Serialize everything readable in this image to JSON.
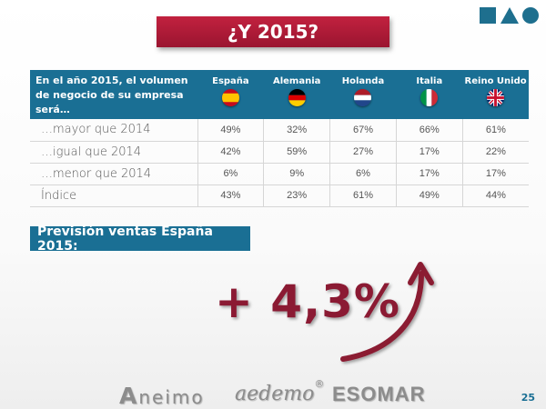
{
  "title": "¿Y 2015?",
  "table": {
    "question": "En el año 2015, el volumen de negocio de su empresa será…",
    "countries": [
      {
        "name": "España",
        "flag": "spain-flag-icon"
      },
      {
        "name": "Alemania",
        "flag": "germany-flag-icon"
      },
      {
        "name": "Holanda",
        "flag": "netherlands-flag-icon"
      },
      {
        "name": "Italia",
        "flag": "italy-flag-icon"
      },
      {
        "name": "Reino Unido",
        "flag": "uk-flag-icon"
      }
    ],
    "rows": [
      {
        "label": "…mayor que 2014",
        "values": [
          "49%",
          "32%",
          "67%",
          "66%",
          "61%"
        ]
      },
      {
        "label": "…igual que 2014",
        "values": [
          "42%",
          "59%",
          "27%",
          "17%",
          "22%"
        ]
      },
      {
        "label": "…menor que 2014",
        "values": [
          "6%",
          "9%",
          "6%",
          "17%",
          "17%"
        ]
      },
      {
        "label": "Índice",
        "values": [
          "43%",
          "23%",
          "61%",
          "49%",
          "44%"
        ]
      }
    ]
  },
  "forecast": {
    "label": "Previsión ventas España 2015:",
    "value": "+ 4,3%"
  },
  "footer": {
    "logo_aneimo_initial": "A",
    "logo_aneimo_rest": "neimo",
    "logo_aedemo": "aedemo",
    "logo_aedemo_mark": "®",
    "logo_esomar": "ESOMAR",
    "page_number": "25"
  },
  "colors": {
    "title_red": "#a8192f",
    "accent_blue": "#1a6f94",
    "value_maroon": "#8b1a33"
  }
}
